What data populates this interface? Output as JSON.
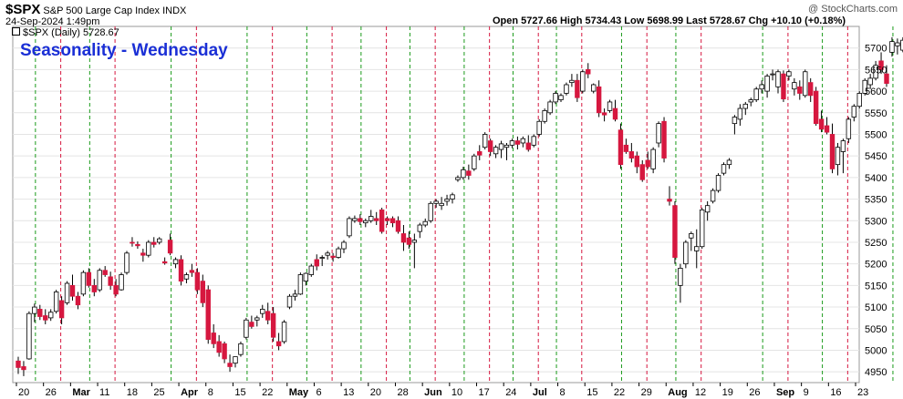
{
  "header": {
    "symbol": "$SPX",
    "name": "S&P 500 Large Cap Index",
    "exchange": "INDX",
    "date": "24-Sep-2024 1:49pm",
    "ohlc": "Open 5727.66  High 5734.43  Low 5698.99  Last 5728.67  Chg +10.10 (+0.18%)",
    "watermark": "@ StockCharts.com"
  },
  "legend": "$SPX (Daily) 5728.67",
  "overlay_title": "Seasonality - Wednesday",
  "chart_data": {
    "type": "candlestick",
    "ylim": [
      4925,
      5750
    ],
    "y_ticks": [
      4950,
      5000,
      5050,
      5100,
      5150,
      5200,
      5250,
      5300,
      5350,
      5400,
      5450,
      5500,
      5550,
      5600,
      5650,
      5700
    ],
    "colors": {
      "up": "#ffffff",
      "down": "#d6173f",
      "edge": "#000000",
      "wednesday_line": "#d6173f",
      "other_line": "#1a9a1a"
    },
    "x_tick_labels": [
      "20",
      "26",
      "Mar",
      "11",
      "18",
      "25",
      "Apr",
      "8",
      "15",
      "22",
      "May",
      "6",
      "13",
      "20",
      "28",
      "Jun",
      "10",
      "17",
      "24",
      "Jul",
      "8",
      "15",
      "22",
      "29",
      "Aug",
      "12",
      "19",
      "26",
      "Sep",
      "9",
      "16",
      "23"
    ],
    "bold_ticks": [
      "Mar",
      "Apr",
      "May",
      "Jun",
      "Jul",
      "Aug",
      "Sep"
    ],
    "candles": [
      [
        4975,
        4985,
        4945,
        4960
      ],
      [
        4962,
        4975,
        4940,
        4955
      ],
      [
        4980,
        5090,
        4978,
        5085
      ],
      [
        5085,
        5108,
        5065,
        5100
      ],
      [
        5095,
        5105,
        5070,
        5078
      ],
      [
        5080,
        5095,
        5060,
        5070
      ],
      [
        5075,
        5095,
        5068,
        5088
      ],
      [
        5090,
        5140,
        5085,
        5135
      ],
      [
        5115,
        5125,
        5060,
        5075
      ],
      [
        5110,
        5160,
        5105,
        5155
      ],
      [
        5150,
        5175,
        5115,
        5125
      ],
      [
        5125,
        5135,
        5095,
        5105
      ],
      [
        5130,
        5185,
        5125,
        5180
      ],
      [
        5180,
        5190,
        5145,
        5150
      ],
      [
        5150,
        5165,
        5125,
        5135
      ],
      [
        5140,
        5190,
        5135,
        5185
      ],
      [
        5185,
        5195,
        5170,
        5175
      ],
      [
        5170,
        5182,
        5140,
        5150
      ],
      [
        5150,
        5165,
        5125,
        5130
      ],
      [
        5140,
        5180,
        5138,
        5175
      ],
      [
        5180,
        5230,
        5175,
        5225
      ],
      [
        5250,
        5262,
        5240,
        5248
      ],
      [
        5245,
        5252,
        5235,
        5242
      ],
      [
        5225,
        5235,
        5205,
        5220
      ],
      [
        5220,
        5255,
        5215,
        5250
      ],
      [
        5250,
        5262,
        5238,
        5245
      ],
      [
        5250,
        5262,
        5245,
        5258
      ],
      [
        5205,
        5215,
        5198,
        5202
      ],
      [
        5255,
        5270,
        5220,
        5225
      ],
      [
        5200,
        5215,
        5190,
        5210
      ],
      [
        5210,
        5220,
        5150,
        5160
      ],
      [
        5165,
        5180,
        5155,
        5175
      ],
      [
        5185,
        5200,
        5170,
        5180
      ],
      [
        5180,
        5190,
        5130,
        5140
      ],
      [
        5160,
        5175,
        5100,
        5110
      ],
      [
        5140,
        5150,
        5015,
        5025
      ],
      [
        5040,
        5060,
        5005,
        5015
      ],
      [
        5020,
        5035,
        4985,
        4995
      ],
      [
        5015,
        5020,
        4970,
        4980
      ],
      [
        4970,
        4990,
        4950,
        4962
      ],
      [
        4970,
        4985,
        4960,
        4985
      ],
      [
        4990,
        5020,
        4985,
        5015
      ],
      [
        5030,
        5075,
        5025,
        5070
      ],
      [
        5065,
        5080,
        5050,
        5055
      ],
      [
        5070,
        5080,
        5055,
        5075
      ],
      [
        5085,
        5105,
        5075,
        5095
      ],
      [
        5090,
        5110,
        5060,
        5070
      ],
      [
        5085,
        5100,
        5020,
        5030
      ],
      [
        5020,
        5040,
        5000,
        5010
      ],
      [
        5020,
        5070,
        5015,
        5065
      ],
      [
        5100,
        5130,
        5095,
        5125
      ],
      [
        5125,
        5140,
        5115,
        5130
      ],
      [
        5130,
        5180,
        5128,
        5175
      ],
      [
        5160,
        5180,
        5150,
        5178
      ],
      [
        5175,
        5200,
        5170,
        5195
      ],
      [
        5210,
        5222,
        5185,
        5195
      ],
      [
        5215,
        5220,
        5195,
        5215
      ],
      [
        5220,
        5230,
        5210,
        5225
      ],
      [
        5218,
        5225,
        5205,
        5215
      ],
      [
        5215,
        5240,
        5212,
        5235
      ],
      [
        5235,
        5255,
        5225,
        5250
      ],
      [
        5265,
        5310,
        5260,
        5305
      ],
      [
        5300,
        5312,
        5295,
        5305
      ],
      [
        5305,
        5315,
        5290,
        5298
      ],
      [
        5295,
        5305,
        5285,
        5300
      ],
      [
        5300,
        5325,
        5295,
        5310
      ],
      [
        5305,
        5320,
        5290,
        5300
      ],
      [
        5325,
        5330,
        5270,
        5275
      ],
      [
        5305,
        5310,
        5290,
        5300
      ],
      [
        5305,
        5310,
        5285,
        5295
      ],
      [
        5300,
        5310,
        5270,
        5275
      ],
      [
        5270,
        5290,
        5230,
        5250
      ],
      [
        5260,
        5275,
        5235,
        5245
      ],
      [
        5250,
        5270,
        5190,
        5255
      ],
      [
        5275,
        5295,
        5260,
        5290
      ],
      [
        5290,
        5305,
        5285,
        5298
      ],
      [
        5300,
        5345,
        5295,
        5340
      ],
      [
        5340,
        5350,
        5330,
        5345
      ],
      [
        5335,
        5355,
        5325,
        5340
      ],
      [
        5345,
        5360,
        5335,
        5350
      ],
      [
        5350,
        5365,
        5340,
        5360
      ],
      [
        5395,
        5405,
        5390,
        5400
      ],
      [
        5400,
        5425,
        5395,
        5418
      ],
      [
        5415,
        5430,
        5395,
        5405
      ],
      [
        5420,
        5455,
        5415,
        5450
      ],
      [
        5460,
        5475,
        5440,
        5452
      ],
      [
        5470,
        5505,
        5465,
        5500
      ],
      [
        5485,
        5490,
        5450,
        5460
      ],
      [
        5455,
        5475,
        5445,
        5470
      ],
      [
        5465,
        5485,
        5445,
        5478
      ],
      [
        5470,
        5480,
        5440,
        5475
      ],
      [
        5475,
        5490,
        5468,
        5485
      ],
      [
        5485,
        5495,
        5465,
        5477
      ],
      [
        5480,
        5495,
        5470,
        5490
      ],
      [
        5480,
        5498,
        5460,
        5465
      ],
      [
        5475,
        5500,
        5470,
        5495
      ],
      [
        5500,
        5535,
        5495,
        5530
      ],
      [
        5530,
        5560,
        5525,
        5555
      ],
      [
        5550,
        5580,
        5545,
        5575
      ],
      [
        5575,
        5600,
        5570,
        5595
      ],
      [
        5580,
        5595,
        5575,
        5590
      ],
      [
        5595,
        5620,
        5590,
        5615
      ],
      [
        5620,
        5640,
        5610,
        5625
      ],
      [
        5625,
        5640,
        5575,
        5585
      ],
      [
        5600,
        5650,
        5595,
        5645
      ],
      [
        5650,
        5665,
        5630,
        5640
      ],
      [
        5600,
        5618,
        5595,
        5615
      ],
      [
        5610,
        5625,
        5540,
        5550
      ],
      [
        5550,
        5560,
        5530,
        5545
      ],
      [
        5555,
        5580,
        5550,
        5575
      ],
      [
        5560,
        5580,
        5530,
        5535
      ],
      [
        5510,
        5525,
        5420,
        5430
      ],
      [
        5475,
        5490,
        5455,
        5460
      ],
      [
        5460,
        5480,
        5435,
        5445
      ],
      [
        5450,
        5460,
        5410,
        5425
      ],
      [
        5430,
        5440,
        5390,
        5395
      ],
      [
        5440,
        5460,
        5420,
        5425
      ],
      [
        5420,
        5470,
        5410,
        5465
      ],
      [
        5480,
        5530,
        5470,
        5525
      ],
      [
        5530,
        5540,
        5435,
        5445
      ],
      [
        5350,
        5380,
        5335,
        5345
      ],
      [
        5335,
        5345,
        5200,
        5215
      ],
      [
        5150,
        5200,
        5110,
        5190
      ],
      [
        5200,
        5255,
        5190,
        5250
      ],
      [
        5260,
        5275,
        5230,
        5270
      ],
      [
        5230,
        5280,
        5190,
        5240
      ],
      [
        5240,
        5330,
        5235,
        5325
      ],
      [
        5320,
        5345,
        5300,
        5335
      ],
      [
        5345,
        5375,
        5340,
        5370
      ],
      [
        5370,
        5410,
        5365,
        5405
      ],
      [
        5410,
        5435,
        5405,
        5430
      ],
      [
        5430,
        5445,
        5420,
        5440
      ],
      [
        5525,
        5545,
        5500,
        5540
      ],
      [
        5535,
        5570,
        5520,
        5560
      ],
      [
        5560,
        5575,
        5545,
        5570
      ],
      [
        5575,
        5585,
        5565,
        5580
      ],
      [
        5580,
        5610,
        5575,
        5605
      ],
      [
        5605,
        5625,
        5595,
        5615
      ],
      [
        5600,
        5640,
        5585,
        5635
      ],
      [
        5640,
        5650,
        5625,
        5640
      ],
      [
        5610,
        5650,
        5595,
        5645
      ],
      [
        5640,
        5648,
        5575,
        5582
      ],
      [
        5635,
        5650,
        5625,
        5645
      ],
      [
        5605,
        5630,
        5590,
        5620
      ],
      [
        5610,
        5625,
        5580,
        5595
      ],
      [
        5590,
        5650,
        5585,
        5645
      ],
      [
        5620,
        5630,
        5575,
        5590
      ],
      [
        5600,
        5610,
        5520,
        5525
      ],
      [
        5535,
        5555,
        5505,
        5512
      ],
      [
        5520,
        5540,
        5500,
        5505
      ],
      [
        5500,
        5525,
        5410,
        5420
      ],
      [
        5430,
        5480,
        5405,
        5470
      ],
      [
        5460,
        5490,
        5410,
        5485
      ],
      [
        5490,
        5540,
        5480,
        5535
      ],
      [
        5540,
        5570,
        5530,
        5565
      ],
      [
        5565,
        5600,
        5560,
        5595
      ],
      [
        5595,
        5630,
        5590,
        5625
      ],
      [
        5615,
        5640,
        5605,
        5630
      ],
      [
        5630,
        5670,
        5625,
        5660
      ],
      [
        5670,
        5690,
        5640,
        5650
      ],
      [
        5640,
        5660,
        5610,
        5618
      ],
      [
        5690,
        5725,
        5680,
        5715
      ],
      [
        5705,
        5722,
        5685,
        5712
      ],
      [
        5695,
        5725,
        5690,
        5718
      ],
      [
        5718,
        5734,
        5699,
        5729
      ]
    ],
    "wednesday_markers": [
      5,
      15,
      30,
      44,
      55,
      65,
      74,
      84,
      93,
      101,
      113,
      123,
      139,
      150,
      163
    ]
  }
}
